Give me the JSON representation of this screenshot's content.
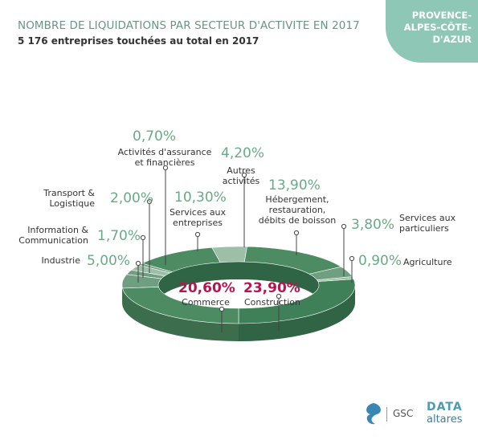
{
  "header": {
    "title": "NOMBRE DE LIQUIDATIONS PAR SECTEUR D'ACTIVITE EN 2017",
    "subtitle": "5 176 entreprises touchées au total en 2017",
    "region_lines": [
      "PROVENCE-",
      "ALPES-CÔTE-",
      "D'AZUR"
    ]
  },
  "footer": {
    "gsc": "GSC",
    "data_word": "DATA",
    "altares_word": "altares"
  },
  "colors": {
    "ring_dark": "#3f8058",
    "ring_mid": "#4d8c63",
    "ring_light": "#6f9e80",
    "ring_pale": "#9dbfa8",
    "accent_green": "#6aaa86",
    "accent_red": "#b5164f",
    "badge": "#8fc7b6"
  },
  "chart_data": {
    "type": "pie",
    "title": "NOMBRE DE LIQUIDATIONS PAR SECTEUR D'ACTIVITE EN 2017",
    "unit": "%",
    "slices": [
      {
        "label": "Construction",
        "value": 23.9,
        "display": "23,90%"
      },
      {
        "label": "Agriculture",
        "value": 0.9,
        "display": "0,90%"
      },
      {
        "label": "Services aux particuliers",
        "value": 3.8,
        "display": "3,80%"
      },
      {
        "label": "Hébergement, restauration, débits de boisson",
        "value": 13.9,
        "display": "13,90%"
      },
      {
        "label": "Autres activités",
        "value": 4.2,
        "display": "4,20%"
      },
      {
        "label": "Services aux entreprises",
        "value": 10.3,
        "display": "10,30%"
      },
      {
        "label": "Activités d'assurance et financières",
        "value": 0.7,
        "display": "0,70%"
      },
      {
        "label": "Transport & Logistique",
        "value": 2.0,
        "display": "2,00%"
      },
      {
        "label": "Information & Communication",
        "value": 1.7,
        "display": "1,70%"
      },
      {
        "label": "Industrie",
        "value": 5.0,
        "display": "5,00%"
      },
      {
        "label": "Commerce",
        "value": 20.6,
        "display": "20,60%"
      }
    ]
  }
}
